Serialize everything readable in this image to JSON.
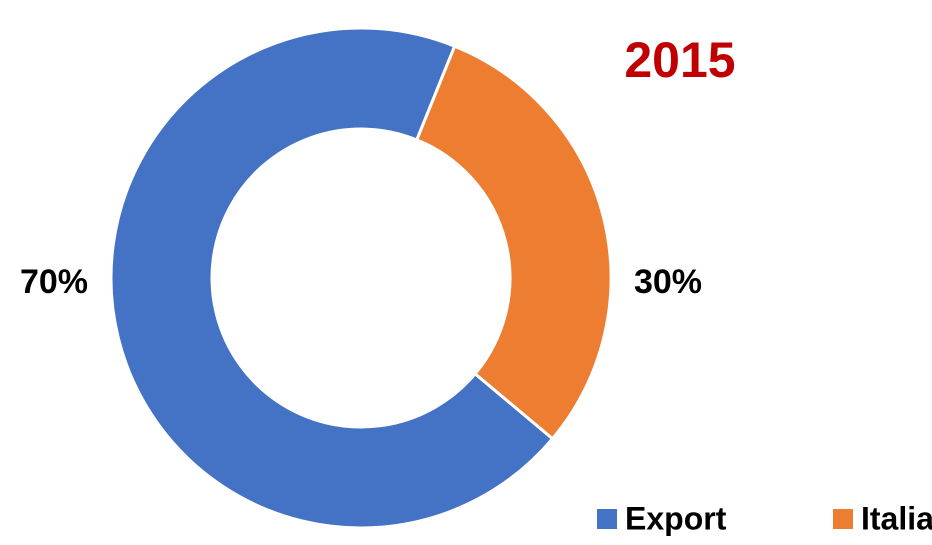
{
  "chart_data": {
    "type": "donut",
    "title": "2015",
    "categories": [
      "Export",
      "Italia"
    ],
    "values": [
      70,
      30
    ],
    "value_labels": [
      "70%",
      "30%"
    ],
    "colors": [
      "#4472c4",
      "#ed7d31"
    ],
    "title_color": "#c00000",
    "legend": "bottom-right"
  }
}
